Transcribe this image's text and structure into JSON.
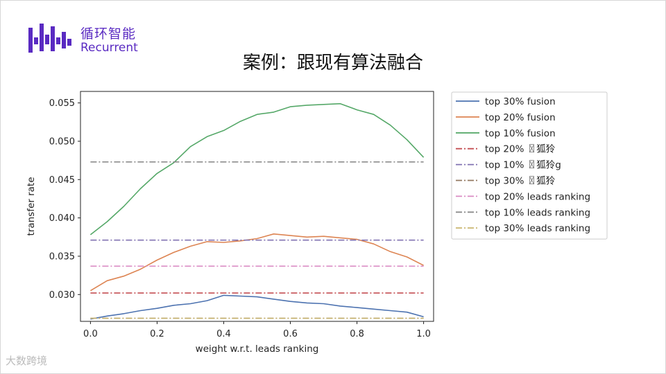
{
  "header": {
    "logo_cn": "循环智能",
    "logo_en": "Recurrent",
    "slide_title": "案例：跟现有算法融合"
  },
  "watermark": "大数跨境",
  "chart_data": {
    "type": "line",
    "xlabel": "weight w.r.t. leads ranking",
    "ylabel": "transfer rate",
    "xlim": [
      -0.03,
      1.03
    ],
    "ylim": [
      0.0265,
      0.0565
    ],
    "xticks": [
      0.0,
      0.2,
      0.4,
      0.6,
      0.8,
      1.0
    ],
    "xtick_labels": [
      "0.0",
      "0.2",
      "0.4",
      "0.6",
      "0.8",
      "1.0"
    ],
    "yticks": [
      0.03,
      0.035,
      0.04,
      0.045,
      0.05,
      0.055
    ],
    "ytick_labels": [
      "0.030",
      "0.035",
      "0.040",
      "0.045",
      "0.050",
      "0.055"
    ],
    "grid": false,
    "legend_position": "outside-right",
    "x": [
      0.0,
      0.05,
      0.1,
      0.15,
      0.2,
      0.25,
      0.3,
      0.35,
      0.4,
      0.45,
      0.5,
      0.55,
      0.6,
      0.65,
      0.7,
      0.75,
      0.8,
      0.85,
      0.9,
      0.95,
      1.0
    ],
    "series": [
      {
        "name": "top 30% fusion",
        "color": "#4c72b0",
        "style": "solid",
        "values": [
          0.0268,
          0.0272,
          0.0275,
          0.0279,
          0.0282,
          0.0286,
          0.0288,
          0.0292,
          0.0299,
          0.0298,
          0.0297,
          0.0294,
          0.0291,
          0.0289,
          0.0288,
          0.0285,
          0.0283,
          0.0281,
          0.0279,
          0.0277,
          0.0271
        ]
      },
      {
        "name": "top 20% fusion",
        "color": "#dd8452",
        "style": "solid",
        "values": [
          0.0305,
          0.0318,
          0.0324,
          0.0333,
          0.0345,
          0.0355,
          0.0363,
          0.0369,
          0.0368,
          0.037,
          0.0373,
          0.0379,
          0.0377,
          0.0375,
          0.0376,
          0.0374,
          0.0372,
          0.0366,
          0.0356,
          0.0349,
          0.0338
        ]
      },
      {
        "name": "top 10% fusion",
        "color": "#55a868",
        "style": "solid",
        "values": [
          0.0378,
          0.0395,
          0.0415,
          0.0438,
          0.0458,
          0.0472,
          0.0493,
          0.0506,
          0.0514,
          0.0526,
          0.0535,
          0.0538,
          0.0545,
          0.0547,
          0.0548,
          0.0549,
          0.0541,
          0.0535,
          0.0521,
          0.0502,
          0.0479
        ]
      },
      {
        "name": "top 20% 〿狐狑",
        "color": "#c44e52",
        "style": "dashdot",
        "constant": 0.0302
      },
      {
        "name": "top 10% 〿狐狑g",
        "color": "#8172b2",
        "style": "dashdot",
        "constant": 0.0371
      },
      {
        "name": "top 30% 〿狐狑",
        "color": "#937860",
        "style": "dashdot",
        "constant": 0.0269
      },
      {
        "name": "top 20% leads ranking",
        "color": "#da8bc3",
        "style": "dashdot",
        "constant": 0.0337
      },
      {
        "name": "top 10% leads ranking",
        "color": "#8c8c8c",
        "style": "dashdot",
        "constant": 0.0473
      },
      {
        "name": "top 30% leads ranking",
        "color": "#ccb974",
        "style": "dashdot",
        "constant": 0.0269
      }
    ]
  }
}
